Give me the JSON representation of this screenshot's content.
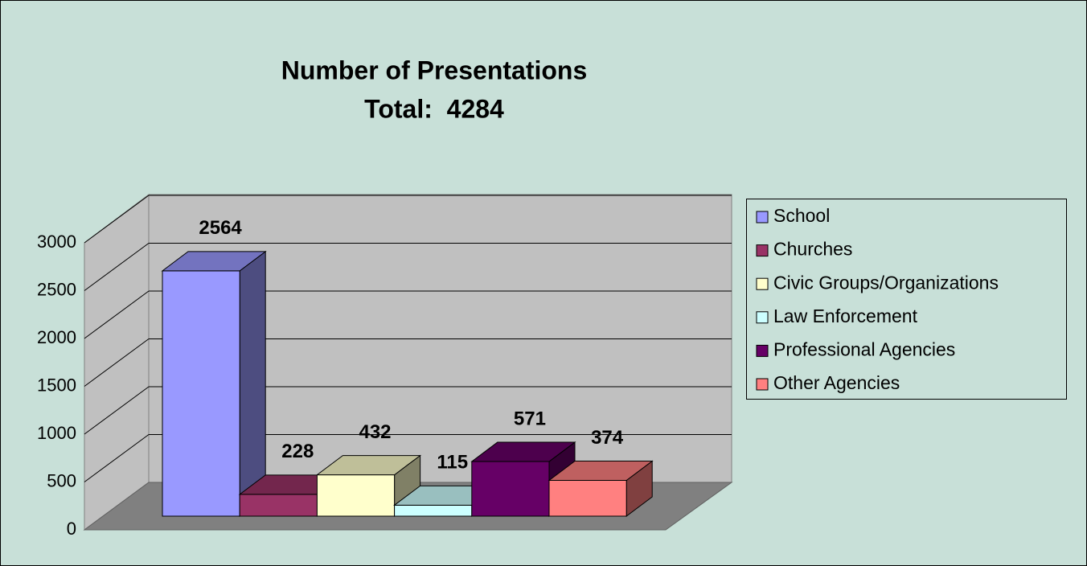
{
  "chart_data": {
    "type": "bar3d",
    "title": "Number of Presentations",
    "subtitle": "Total:  4284",
    "categories": [
      "School",
      "Churches",
      "Civic Groups/Organizations",
      "Law Enforcement",
      "Professional Agencies",
      "Other Agencies"
    ],
    "values": [
      2564,
      228,
      432,
      115,
      571,
      374
    ],
    "colors": [
      "#9999ff",
      "#993366",
      "#ffffcc",
      "#ccffff",
      "#660066",
      "#ff8080"
    ],
    "ylim": [
      0,
      3000
    ],
    "yticks": [
      0,
      500,
      1000,
      1500,
      2000,
      2500,
      3000
    ],
    "grid": true,
    "legend": "right"
  }
}
